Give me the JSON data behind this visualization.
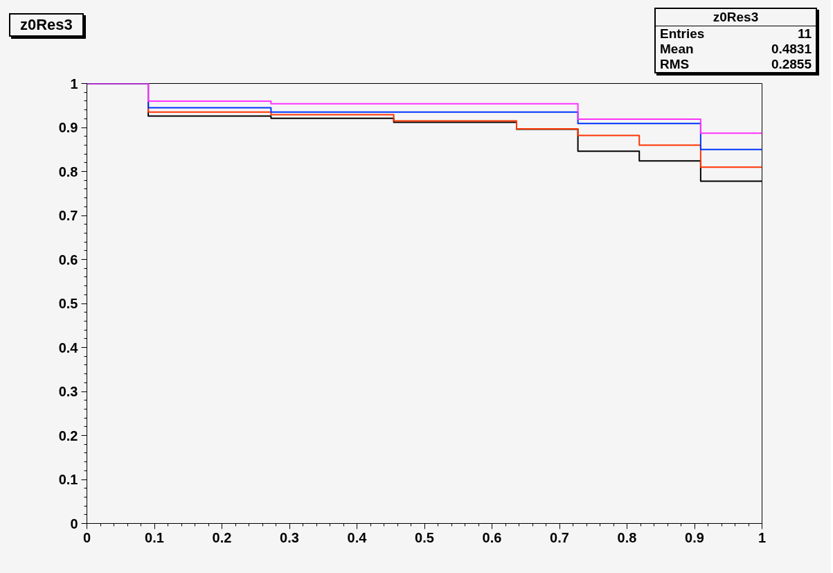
{
  "chart_data": {
    "type": "histogram",
    "title": "z0Res3",
    "bins": [
      0,
      0.0909,
      0.1818,
      0.2727,
      0.3636,
      0.4545,
      0.5455,
      0.6364,
      0.7273,
      0.8182,
      0.9091,
      1.0
    ],
    "series": [
      {
        "color": "#000000",
        "values": [
          1.0,
          0.926,
          0.926,
          0.921,
          0.921,
          0.912,
          0.912,
          0.896,
          0.846,
          0.824,
          0.778
        ]
      },
      {
        "color": "#ff3300",
        "values": [
          1.0,
          0.935,
          0.935,
          0.929,
          0.929,
          0.915,
          0.915,
          0.897,
          0.882,
          0.86,
          0.81
        ]
      },
      {
        "color": "#0033ff",
        "values": [
          1.0,
          0.945,
          0.945,
          0.935,
          0.935,
          0.935,
          0.935,
          0.935,
          0.909,
          0.909,
          0.85
        ]
      },
      {
        "color": "#ff33ff",
        "values": [
          1.0,
          0.96,
          0.96,
          0.954,
          0.954,
          0.954,
          0.954,
          0.954,
          0.919,
          0.919,
          0.887
        ]
      }
    ],
    "annotations": [
      "z0Res3",
      "Entries",
      "11",
      "Mean",
      "0.4831",
      "RMS",
      "0.2855"
    ],
    "xlim": [
      0,
      1
    ],
    "ylim": [
      0,
      1
    ],
    "xticks": [
      0,
      0.1,
      0.2,
      0.3,
      0.4,
      0.5,
      0.6,
      0.7,
      0.8,
      0.9,
      1
    ],
    "yticks": [
      0,
      0.1,
      0.2,
      0.3,
      0.4,
      0.5,
      0.6,
      0.7,
      0.8,
      0.9,
      1
    ],
    "grid": false
  }
}
